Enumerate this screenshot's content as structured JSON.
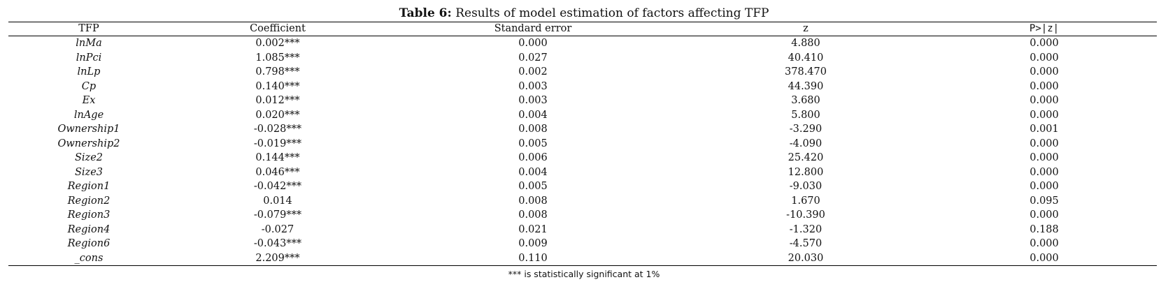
{
  "caption": {
    "lead": "Table 6:",
    "text": "Results of model estimation of factors affecting TFP"
  },
  "table": {
    "headers": [
      "TFP",
      "Coefficient",
      "Standard error",
      "z",
      "P>|z|"
    ],
    "rows": [
      [
        "lnMa",
        "0.002***",
        "0.000",
        "4.880",
        "0.000"
      ],
      [
        "lnPci",
        "1.085***",
        "0.027",
        "40.410",
        "0.000"
      ],
      [
        "lnLp",
        "0.798***",
        "0.002",
        "378.470",
        "0.000"
      ],
      [
        "Cp",
        "0.140***",
        "0.003",
        "44.390",
        "0.000"
      ],
      [
        "Ex",
        "0.012***",
        "0.003",
        "3.680",
        "0.000"
      ],
      [
        "lnAge",
        "0.020***",
        "0.004",
        "5.800",
        "0.000"
      ],
      [
        "Ownership1",
        "-0.028***",
        "0.008",
        "-3.290",
        "0.001"
      ],
      [
        "Ownership2",
        "-0.019***",
        "0.005",
        "-4.090",
        "0.000"
      ],
      [
        "Size2",
        "0.144***",
        "0.006",
        "25.420",
        "0.000"
      ],
      [
        "Size3",
        "0.046***",
        "0.004",
        "12.800",
        "0.000"
      ],
      [
        "Region1",
        "-0.042***",
        "0.005",
        "-9.030",
        "0.000"
      ],
      [
        "Region2",
        "0.014",
        "0.008",
        "1.670",
        "0.095"
      ],
      [
        "Region3",
        "-0.079***",
        "0.008",
        "-10.390",
        "0.000"
      ],
      [
        "Region4",
        "-0.027",
        "0.021",
        "-1.320",
        "0.188"
      ],
      [
        "Region6",
        "-0.043***",
        "0.009",
        "-4.570",
        "0.000"
      ],
      [
        "_cons",
        "2.209***",
        "0.110",
        "20.030",
        "0.000"
      ]
    ]
  },
  "note": "*** is statistically significant at 1%"
}
